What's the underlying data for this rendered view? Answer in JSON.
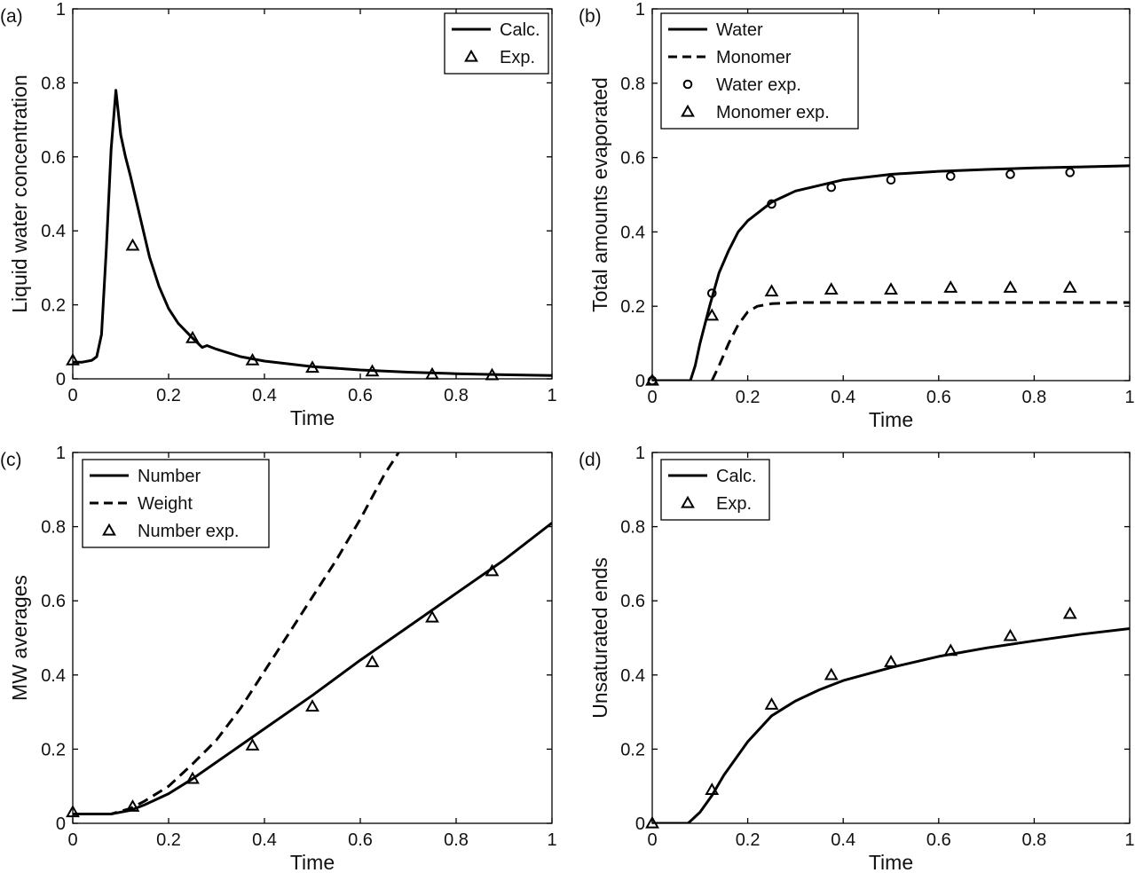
{
  "chart_data": [
    {
      "type": "line",
      "panel": "(a)",
      "xlabel": "Time",
      "ylabel": "Liquid water concentration",
      "xlim": [
        0,
        1
      ],
      "ylim": [
        0,
        1
      ],
      "xticks": [
        "0",
        "0.2",
        "0.4",
        "0.6",
        "0.8",
        "1"
      ],
      "yticks": [
        "0",
        "0.2",
        "0.4",
        "0.6",
        "0.8",
        "1"
      ],
      "legend_position": "top-right",
      "series": [
        {
          "name": "Calc.",
          "style": "solid",
          "x": [
            0,
            0.02,
            0.04,
            0.05,
            0.06,
            0.07,
            0.08,
            0.09,
            0.1,
            0.11,
            0.12,
            0.14,
            0.16,
            0.18,
            0.2,
            0.22,
            0.25,
            0.27,
            0.28,
            0.3,
            0.35,
            0.4,
            0.5,
            0.6,
            0.7,
            0.8,
            0.9,
            1.0
          ],
          "y": [
            0.045,
            0.045,
            0.05,
            0.06,
            0.12,
            0.35,
            0.62,
            0.78,
            0.66,
            0.6,
            0.55,
            0.44,
            0.33,
            0.25,
            0.19,
            0.15,
            0.11,
            0.085,
            0.09,
            0.08,
            0.06,
            0.048,
            0.033,
            0.024,
            0.018,
            0.014,
            0.011,
            0.009
          ]
        },
        {
          "name": "Exp.",
          "style": "triangle-markers",
          "x": [
            0,
            0.125,
            0.25,
            0.375,
            0.5,
            0.625,
            0.75,
            0.875
          ],
          "y": [
            0.05,
            0.36,
            0.11,
            0.05,
            0.03,
            0.02,
            0.012,
            0.01
          ]
        }
      ]
    },
    {
      "type": "line",
      "panel": "(b)",
      "xlabel": "Time",
      "ylabel": "Total amounts evaporated",
      "xlim": [
        0,
        1
      ],
      "ylim": [
        0,
        1
      ],
      "xticks": [
        "0",
        "0.2",
        "0.4",
        "0.6",
        "0.8",
        "1"
      ],
      "yticks": [
        "0",
        "0.2",
        "0.4",
        "0.6",
        "0.8",
        "1"
      ],
      "legend_position": "top-left",
      "series": [
        {
          "name": "Water",
          "style": "solid",
          "x": [
            0,
            0.05,
            0.08,
            0.09,
            0.1,
            0.12,
            0.14,
            0.16,
            0.18,
            0.2,
            0.25,
            0.3,
            0.4,
            0.5,
            0.6,
            0.7,
            0.8,
            0.9,
            1.0
          ],
          "y": [
            0,
            0,
            0,
            0.04,
            0.1,
            0.2,
            0.29,
            0.35,
            0.4,
            0.43,
            0.48,
            0.51,
            0.54,
            0.555,
            0.563,
            0.568,
            0.572,
            0.575,
            0.578
          ]
        },
        {
          "name": "Monomer",
          "style": "dashed",
          "x": [
            0.125,
            0.14,
            0.16,
            0.18,
            0.2,
            0.22,
            0.25,
            0.3,
            0.4,
            0.6,
            0.8,
            1.0
          ],
          "y": [
            0,
            0.04,
            0.1,
            0.15,
            0.185,
            0.2,
            0.207,
            0.21,
            0.21,
            0.21,
            0.21,
            0.21
          ]
        },
        {
          "name": "Water exp.",
          "style": "circle-markers",
          "x": [
            0,
            0.125,
            0.25,
            0.375,
            0.5,
            0.625,
            0.75,
            0.875
          ],
          "y": [
            0,
            0.235,
            0.475,
            0.52,
            0.54,
            0.55,
            0.555,
            0.56
          ]
        },
        {
          "name": "Monomer exp.",
          "style": "triangle-markers",
          "x": [
            0,
            0.125,
            0.25,
            0.375,
            0.5,
            0.625,
            0.75,
            0.875
          ],
          "y": [
            0,
            0.175,
            0.24,
            0.245,
            0.245,
            0.25,
            0.25,
            0.25
          ]
        }
      ]
    },
    {
      "type": "line",
      "panel": "(c)",
      "xlabel": "Time",
      "ylabel": "MW averages",
      "xlim": [
        0,
        1
      ],
      "ylim": [
        0,
        1
      ],
      "xticks": [
        "0",
        "0.2",
        "0.4",
        "0.6",
        "0.8",
        "1"
      ],
      "yticks": [
        "0",
        "0.2",
        "0.4",
        "0.6",
        "0.8",
        "1"
      ],
      "legend_position": "top-left",
      "series": [
        {
          "name": "Number",
          "style": "solid",
          "x": [
            0,
            0.08,
            0.12,
            0.15,
            0.2,
            0.25,
            0.3,
            0.4,
            0.5,
            0.6,
            0.7,
            0.8,
            0.9,
            1.0
          ],
          "y": [
            0.025,
            0.025,
            0.035,
            0.05,
            0.08,
            0.12,
            0.165,
            0.255,
            0.345,
            0.44,
            0.53,
            0.62,
            0.71,
            0.81
          ]
        },
        {
          "name": "Weight",
          "style": "dashed",
          "x": [
            0,
            0.08,
            0.12,
            0.15,
            0.2,
            0.25,
            0.3,
            0.35,
            0.4,
            0.45,
            0.5,
            0.55,
            0.6,
            0.65,
            0.68
          ],
          "y": [
            0.025,
            0.025,
            0.04,
            0.06,
            0.1,
            0.16,
            0.225,
            0.31,
            0.41,
            0.51,
            0.61,
            0.71,
            0.82,
            0.94,
            1.0
          ]
        },
        {
          "name": "Number exp.",
          "style": "triangle-markers",
          "x": [
            0,
            0.125,
            0.25,
            0.375,
            0.5,
            0.625,
            0.75,
            0.875
          ],
          "y": [
            0.03,
            0.045,
            0.12,
            0.21,
            0.315,
            0.435,
            0.555,
            0.68
          ]
        }
      ]
    },
    {
      "type": "line",
      "panel": "(d)",
      "xlabel": "Time",
      "ylabel": "Unsaturated ends",
      "xlim": [
        0,
        1
      ],
      "ylim": [
        0,
        1
      ],
      "xticks": [
        "0",
        "0.2",
        "0.4",
        "0.6",
        "0.8",
        "1"
      ],
      "yticks": [
        "0",
        "0.2",
        "0.4",
        "0.6",
        "0.8",
        "1"
      ],
      "legend_position": "top-left",
      "series": [
        {
          "name": "Calc.",
          "style": "solid",
          "x": [
            0,
            0.05,
            0.075,
            0.1,
            0.125,
            0.15,
            0.2,
            0.25,
            0.3,
            0.35,
            0.4,
            0.5,
            0.6,
            0.7,
            0.8,
            0.9,
            1.0
          ],
          "y": [
            0,
            0,
            0,
            0.03,
            0.075,
            0.13,
            0.22,
            0.29,
            0.33,
            0.36,
            0.385,
            0.42,
            0.45,
            0.473,
            0.492,
            0.51,
            0.525
          ]
        },
        {
          "name": "Exp.",
          "style": "triangle-markers",
          "x": [
            0,
            0.125,
            0.25,
            0.375,
            0.5,
            0.625,
            0.75,
            0.875
          ],
          "y": [
            0,
            0.09,
            0.32,
            0.4,
            0.435,
            0.465,
            0.505,
            0.565
          ]
        }
      ]
    }
  ]
}
